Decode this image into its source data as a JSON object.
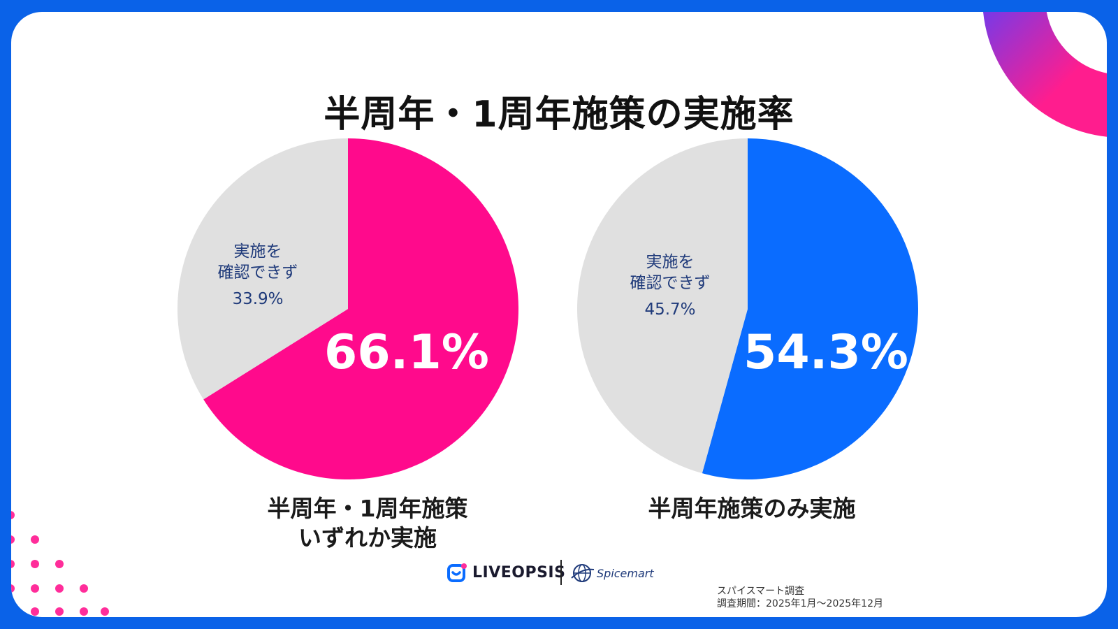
{
  "page_title": "半周年・1周年施策の実施率",
  "chart_data": [
    {
      "type": "pie",
      "title": "半周年・1周年施策\nいずれか実施",
      "slices": [
        {
          "label": "半周年・1周年施策いずれか実施",
          "value": 66.1,
          "display": "66.1%",
          "color": "#ff0a8c"
        },
        {
          "label": "実施を確認できず",
          "value": 33.9,
          "display": "33.9%",
          "color": "#e0e0e0"
        }
      ]
    },
    {
      "type": "pie",
      "title": "半周年施策のみ実施",
      "slices": [
        {
          "label": "半周年施策のみ実施",
          "value": 54.3,
          "display": "54.3%",
          "color": "#0a6cff"
        },
        {
          "label": "実施を確認できず",
          "value": 45.7,
          "display": "45.7%",
          "color": "#e0e0e0"
        }
      ]
    }
  ],
  "pies": [
    {
      "label_line1": "半周年・1周年施策",
      "label_line2": "いずれか実施",
      "gray_line1": "実施を",
      "gray_line2": "確認できず",
      "gray_pct": "33.9%",
      "main_pct": "66.1%"
    },
    {
      "label_line1": "半周年施策のみ実施",
      "gray_line1": "実施を",
      "gray_line2": "確認できず",
      "gray_pct": "45.7%",
      "main_pct": "54.3%"
    }
  ],
  "footer": {
    "liveopsis": "LIVEOPSIS",
    "spicemart": "Spicemart",
    "survey": "スパイスマート調査",
    "period": "調査期間：2025年1月〜2025年12月"
  },
  "colors": {
    "pink": "#ff0a8c",
    "blue": "#0a6cff",
    "gray": "#e0e0e0",
    "frame": "#0a62e8",
    "gray_text": "#1f3a7a"
  }
}
